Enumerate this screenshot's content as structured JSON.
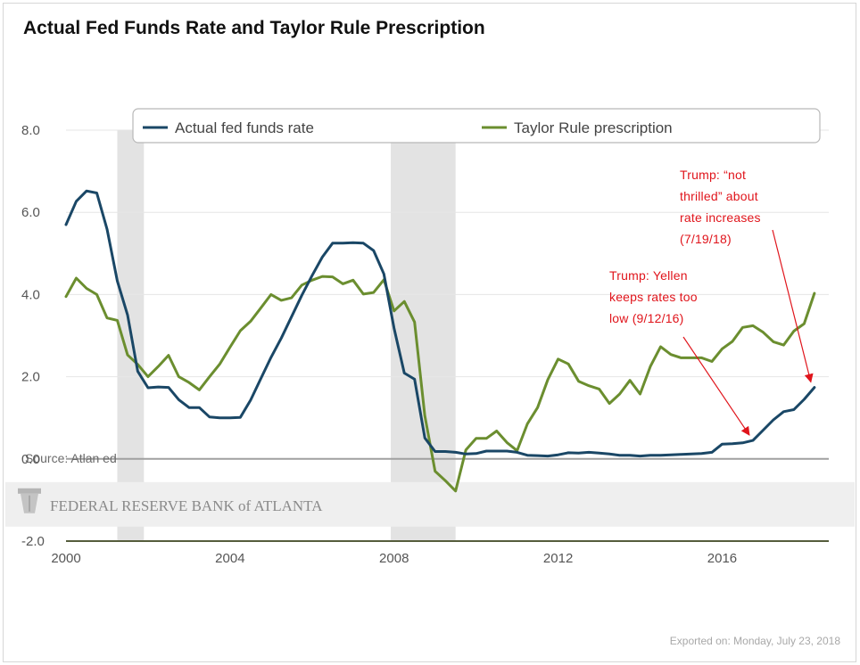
{
  "chart_data": {
    "type": "line",
    "title": "Actual Fed Funds Rate and Taylor Rule Prescription",
    "xlabel": "",
    "ylabel": "",
    "xlim": [
      2000,
      2018.6
    ],
    "ylim": [
      -2.0,
      8.0
    ],
    "x_ticks": [
      "2000",
      "2004",
      "2008",
      "2012",
      "2016"
    ],
    "y_ticks": [
      "8.0",
      "6.0",
      "4.0",
      "2.0",
      "0.0",
      "-2.0"
    ],
    "recessions": [
      [
        2001.25,
        2001.9
      ],
      [
        2007.92,
        2009.5
      ]
    ],
    "series": [
      {
        "name": "Actual fed funds rate",
        "color": "#1a4766",
        "points": [
          [
            2000.0,
            5.7
          ],
          [
            2000.25,
            6.27
          ],
          [
            2000.5,
            6.52
          ],
          [
            2000.75,
            6.47
          ],
          [
            2001.0,
            5.59
          ],
          [
            2001.25,
            4.33
          ],
          [
            2001.5,
            3.5
          ],
          [
            2001.75,
            2.13
          ],
          [
            2002.0,
            1.73
          ],
          [
            2002.25,
            1.75
          ],
          [
            2002.5,
            1.74
          ],
          [
            2002.75,
            1.44
          ],
          [
            2003.0,
            1.25
          ],
          [
            2003.25,
            1.25
          ],
          [
            2003.5,
            1.02
          ],
          [
            2003.75,
            1.0
          ],
          [
            2004.0,
            1.0
          ],
          [
            2004.25,
            1.01
          ],
          [
            2004.5,
            1.43
          ],
          [
            2004.75,
            1.95
          ],
          [
            2005.0,
            2.47
          ],
          [
            2005.25,
            2.94
          ],
          [
            2005.5,
            3.46
          ],
          [
            2005.75,
            3.98
          ],
          [
            2006.0,
            4.46
          ],
          [
            2006.25,
            4.91
          ],
          [
            2006.5,
            5.25
          ],
          [
            2006.75,
            5.25
          ],
          [
            2007.0,
            5.26
          ],
          [
            2007.25,
            5.25
          ],
          [
            2007.5,
            5.07
          ],
          [
            2007.75,
            4.5
          ],
          [
            2008.0,
            3.18
          ],
          [
            2008.25,
            2.09
          ],
          [
            2008.5,
            1.94
          ],
          [
            2008.75,
            0.51
          ],
          [
            2009.0,
            0.18
          ],
          [
            2009.25,
            0.18
          ],
          [
            2009.5,
            0.16
          ],
          [
            2009.75,
            0.12
          ],
          [
            2010.0,
            0.13
          ],
          [
            2010.25,
            0.19
          ],
          [
            2010.5,
            0.19
          ],
          [
            2010.75,
            0.19
          ],
          [
            2011.0,
            0.16
          ],
          [
            2011.25,
            0.09
          ],
          [
            2011.5,
            0.08
          ],
          [
            2011.75,
            0.07
          ],
          [
            2012.0,
            0.1
          ],
          [
            2012.25,
            0.15
          ],
          [
            2012.5,
            0.14
          ],
          [
            2012.75,
            0.16
          ],
          [
            2013.0,
            0.14
          ],
          [
            2013.25,
            0.12
          ],
          [
            2013.5,
            0.09
          ],
          [
            2013.75,
            0.09
          ],
          [
            2014.0,
            0.07
          ],
          [
            2014.25,
            0.09
          ],
          [
            2014.5,
            0.09
          ],
          [
            2014.75,
            0.1
          ],
          [
            2015.0,
            0.11
          ],
          [
            2015.25,
            0.12
          ],
          [
            2015.5,
            0.13
          ],
          [
            2015.75,
            0.16
          ],
          [
            2016.0,
            0.36
          ],
          [
            2016.25,
            0.37
          ],
          [
            2016.5,
            0.39
          ],
          [
            2016.75,
            0.45
          ],
          [
            2017.0,
            0.7
          ],
          [
            2017.25,
            0.95
          ],
          [
            2017.5,
            1.15
          ],
          [
            2017.75,
            1.2
          ],
          [
            2018.0,
            1.45
          ],
          [
            2018.25,
            1.74
          ]
        ]
      },
      {
        "name": "Taylor Rule prescription",
        "color": "#6b8e2f",
        "points": [
          [
            2000.0,
            3.95
          ],
          [
            2000.25,
            4.4
          ],
          [
            2000.5,
            4.15
          ],
          [
            2000.75,
            4.0
          ],
          [
            2001.0,
            3.43
          ],
          [
            2001.25,
            3.37
          ],
          [
            2001.5,
            2.53
          ],
          [
            2001.75,
            2.3
          ],
          [
            2002.0,
            2.0
          ],
          [
            2002.25,
            2.25
          ],
          [
            2002.5,
            2.52
          ],
          [
            2002.75,
            2.0
          ],
          [
            2003.0,
            1.86
          ],
          [
            2003.25,
            1.68
          ],
          [
            2003.5,
            2.0
          ],
          [
            2003.75,
            2.31
          ],
          [
            2004.0,
            2.72
          ],
          [
            2004.25,
            3.12
          ],
          [
            2004.5,
            3.35
          ],
          [
            2004.75,
            3.67
          ],
          [
            2005.0,
            4.0
          ],
          [
            2005.25,
            3.86
          ],
          [
            2005.5,
            3.92
          ],
          [
            2005.75,
            4.23
          ],
          [
            2006.0,
            4.35
          ],
          [
            2006.25,
            4.44
          ],
          [
            2006.5,
            4.43
          ],
          [
            2006.75,
            4.26
          ],
          [
            2007.0,
            4.35
          ],
          [
            2007.25,
            4.01
          ],
          [
            2007.5,
            4.05
          ],
          [
            2007.75,
            4.36
          ],
          [
            2008.0,
            3.6
          ],
          [
            2008.25,
            3.83
          ],
          [
            2008.5,
            3.33
          ],
          [
            2008.75,
            1.05
          ],
          [
            2009.0,
            -0.3
          ],
          [
            2009.25,
            -0.53
          ],
          [
            2009.5,
            -0.78
          ],
          [
            2009.75,
            0.22
          ],
          [
            2010.0,
            0.5
          ],
          [
            2010.25,
            0.5
          ],
          [
            2010.5,
            0.68
          ],
          [
            2010.75,
            0.4
          ],
          [
            2011.0,
            0.2
          ],
          [
            2011.25,
            0.85
          ],
          [
            2011.5,
            1.25
          ],
          [
            2011.75,
            1.93
          ],
          [
            2012.0,
            2.43
          ],
          [
            2012.25,
            2.31
          ],
          [
            2012.5,
            1.89
          ],
          [
            2012.75,
            1.78
          ],
          [
            2013.0,
            1.7
          ],
          [
            2013.25,
            1.35
          ],
          [
            2013.5,
            1.58
          ],
          [
            2013.75,
            1.91
          ],
          [
            2014.0,
            1.58
          ],
          [
            2014.25,
            2.25
          ],
          [
            2014.5,
            2.73
          ],
          [
            2014.75,
            2.54
          ],
          [
            2015.0,
            2.46
          ],
          [
            2015.25,
            2.46
          ],
          [
            2015.5,
            2.46
          ],
          [
            2015.75,
            2.37
          ],
          [
            2016.0,
            2.68
          ],
          [
            2016.25,
            2.86
          ],
          [
            2016.5,
            3.2
          ],
          [
            2016.75,
            3.24
          ],
          [
            2017.0,
            3.08
          ],
          [
            2017.25,
            2.85
          ],
          [
            2017.5,
            2.77
          ],
          [
            2017.75,
            3.11
          ],
          [
            2018.0,
            3.29
          ],
          [
            2018.25,
            4.03
          ]
        ]
      }
    ]
  },
  "annotations": [
    {
      "id": "ann1",
      "lines": [
        "Trump: Yellen",
        "keeps rates too",
        "low (9/12/16)"
      ],
      "target": [
        2016.75,
        0.45
      ]
    },
    {
      "id": "ann2",
      "lines": [
        "Trump: “not",
        "thrilled” about",
        "rate increases",
        "(7/19/18)"
      ],
      "target": [
        2018.25,
        1.74
      ]
    }
  ],
  "watermark": {
    "source_text": "Source: Atlan    ed",
    "bank_text": "FEDERAL RESERVE BANK of ATLANTA"
  },
  "footer": {
    "exported": "Exported on: Monday, July 23, 2018"
  },
  "colors": {
    "recession": "#e3e3e3",
    "grid": "#e6e6e6",
    "annotation": "#e0141b",
    "band": "#efefef"
  }
}
